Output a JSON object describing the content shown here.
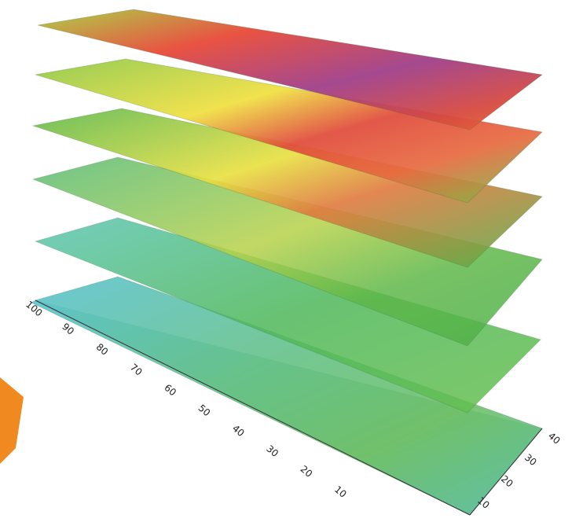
{
  "axis_labels": {
    "depth": [
      "100",
      "90",
      "80",
      "70",
      "60",
      "50",
      "40",
      "30",
      "20",
      "10"
    ],
    "width": [
      "40",
      "30",
      "20",
      "10"
    ]
  }
}
